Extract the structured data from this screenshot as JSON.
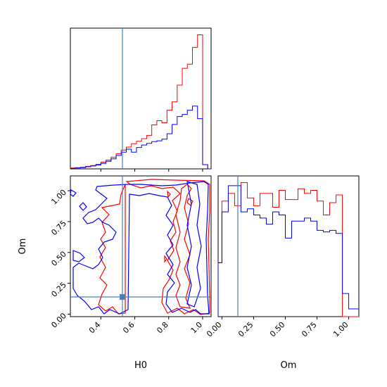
{
  "chart_data": {
    "type": "corner",
    "truth": {
      "H0": 0.53,
      "Om": 0.13
    },
    "colors": {
      "a": "#ff0000",
      "b": "#0000ff",
      "truth": "#4682b4"
    },
    "panels": {
      "h0_hist": {
        "type": "histogram",
        "xlim": [
          0.22,
          1.05
        ],
        "xticks": [
          0.4,
          0.6,
          0.8,
          1.0
        ],
        "bin_edges": [
          0.22,
          0.25,
          0.28,
          0.31,
          0.34,
          0.37,
          0.4,
          0.43,
          0.46,
          0.49,
          0.52,
          0.55,
          0.58,
          0.61,
          0.64,
          0.67,
          0.7,
          0.73,
          0.76,
          0.79,
          0.82,
          0.85,
          0.88,
          0.91,
          0.94,
          0.97,
          1.0,
          1.03,
          1.05
        ],
        "series": [
          {
            "color": "red",
            "values": [
              0.2,
              0.3,
              0.4,
              0.6,
              0.8,
              1.1,
              1.6,
              2.1,
              2.8,
              3.6,
              4.5,
              5.2,
              6.0,
              6.6,
              7.2,
              8.0,
              10.5,
              11.5,
              11.0,
              14.0,
              16.0,
              20.0,
              24.0,
              25.0,
              29.0,
              32.0,
              1.0,
              0.0
            ]
          },
          {
            "color": "blue",
            "values": [
              0.1,
              0.2,
              0.3,
              0.5,
              0.7,
              0.9,
              1.3,
              1.8,
              2.4,
              3.2,
              4.0,
              4.7,
              4.0,
              5.1,
              5.7,
              6.1,
              6.5,
              6.7,
              7.1,
              8.4,
              10.6,
              12.5,
              13.0,
              14.0,
              15.0,
              12.0,
              1.0,
              0.0
            ]
          }
        ]
      },
      "om_hist": {
        "type": "histogram",
        "xlim": [
          -0.03,
          1.08
        ],
        "xticks": [
          0.0,
          0.25,
          0.5,
          0.75,
          1.0
        ],
        "xticklabels": [
          "0.00",
          "0.25",
          "0.50",
          "0.75",
          "1.00"
        ],
        "xlabel": "Om",
        "bin_edges": [
          -0.03,
          0.0,
          0.05,
          0.1,
          0.15,
          0.2,
          0.25,
          0.3,
          0.35,
          0.4,
          0.45,
          0.5,
          0.55,
          0.6,
          0.65,
          0.7,
          0.75,
          0.8,
          0.85,
          0.9,
          0.95,
          1.0,
          1.05,
          1.08
        ],
        "series": [
          {
            "color": "red",
            "values": [
              3.5,
              7.5,
              8.0,
              7.2,
              8.7,
              7.7,
              7.2,
              8.0,
              8.0,
              7.1,
              8.2,
              7.6,
              7.6,
              8.3,
              8.0,
              8.2,
              7.5,
              6.6,
              7.4,
              7.9,
              0.0,
              0.0,
              0.0
            ]
          },
          {
            "color": "blue",
            "values": [
              3.5,
              6.8,
              8.5,
              8.5,
              6.8,
              7.0,
              6.6,
              6.4,
              6.0,
              6.8,
              6.6,
              5.1,
              6.2,
              6.2,
              6.4,
              6.2,
              5.6,
              5.5,
              5.6,
              5.4,
              1.5,
              0.5,
              0.5
            ]
          }
        ]
      },
      "joint": {
        "type": "contour",
        "xlim": [
          0.22,
          1.05
        ],
        "ylim": [
          -0.02,
          1.12
        ],
        "xticks": [
          0.4,
          0.6,
          0.8,
          1.0
        ],
        "yticks": [
          0.0,
          0.25,
          0.5,
          0.75,
          1.0
        ],
        "xticklabels": [
          "0.4",
          "0.6",
          "0.8",
          "1.0"
        ],
        "yticklabels": [
          "0.00",
          "0.25",
          "0.50",
          "0.75",
          "1.00"
        ],
        "xlabel": "H0",
        "ylabel": "Om"
      }
    }
  }
}
